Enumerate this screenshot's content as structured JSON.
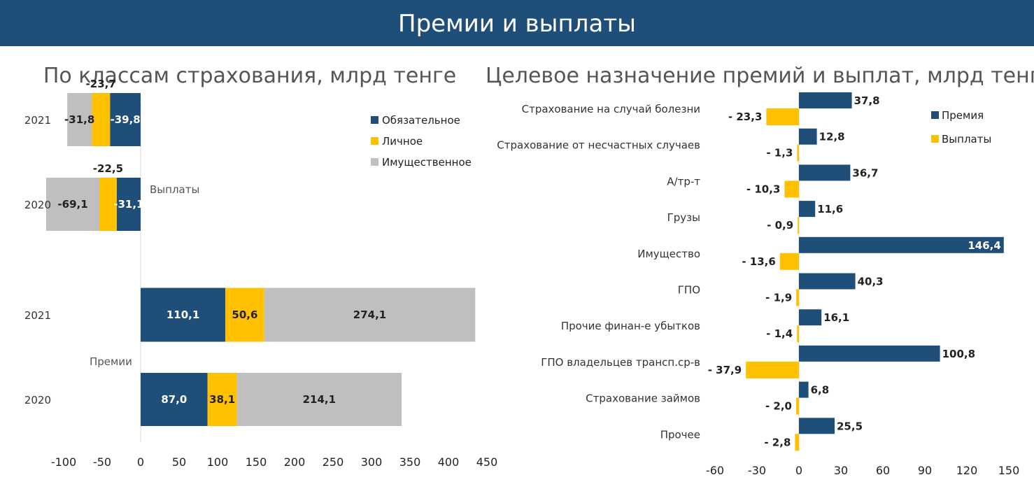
{
  "header": {
    "title": "Премии и выплаты"
  },
  "colors": {
    "header_bg": "#1f4e79",
    "navy": "#1f4e79",
    "yellow": "#ffc000",
    "gray": "#bfbfbf"
  },
  "chart_data": [
    {
      "type": "bar",
      "orientation": "horizontal",
      "stacked": true,
      "title": "По классам страхования, млрд тенге",
      "categories": [
        "2021",
        "2020",
        "2021",
        "2020"
      ],
      "group_labels": [
        "Выплаты",
        "Премии"
      ],
      "series": [
        {
          "name": "Обязательное",
          "values": [
            -39.8,
            -31.1,
            110.1,
            87.0
          ],
          "labels": [
            "-39,8",
            "-31,1",
            "110,1",
            "87,0"
          ]
        },
        {
          "name": "Личное",
          "values": [
            -23.7,
            -22.5,
            50.6,
            38.1
          ],
          "labels": [
            "-23,7",
            "-22,5",
            "50,6",
            "38,1"
          ]
        },
        {
          "name": "Имущественное",
          "values": [
            -31.8,
            -69.1,
            274.1,
            214.1
          ],
          "labels": [
            "-31,8",
            "-69,1",
            "274,1",
            "214,1"
          ]
        }
      ],
      "xlim": [
        -100,
        450
      ],
      "xticks": [
        "-100",
        "-50",
        "0",
        "50",
        "100",
        "150",
        "200",
        "250",
        "300",
        "350",
        "400",
        "450"
      ],
      "legend": "top-right",
      "grid": false
    },
    {
      "type": "bar",
      "orientation": "horizontal",
      "title": "Целевое назначение премий и выплат, млрд тенге",
      "categories": [
        "Страхование на случай болезни",
        "Страхование от несчастных случаев",
        "А/тр-т",
        "Грузы",
        "Имущество",
        "ГПО",
        "Прочие финан-е убытков",
        "ГПО владельцев трансп.ср-в",
        "Страхование займов",
        "Прочее"
      ],
      "series": [
        {
          "name": "Премия",
          "values": [
            37.8,
            12.8,
            36.7,
            11.6,
            146.4,
            40.3,
            16.1,
            100.8,
            6.8,
            25.5
          ],
          "labels": [
            "37,8",
            "12,8",
            "36,7",
            "11,6",
            "146,4",
            "40,3",
            "16,1",
            "100,8",
            "6,8",
            "25,5"
          ]
        },
        {
          "name": "Выплаты",
          "values": [
            -23.3,
            -1.3,
            -10.3,
            -0.9,
            -13.6,
            -1.9,
            -1.4,
            -37.9,
            -2.0,
            -2.8
          ],
          "labels": [
            "- 23,3",
            "- 1,3",
            "- 10,3",
            "- 0,9",
            "- 13,6",
            "- 1,9",
            "- 1,4",
            "- 37,9",
            "- 2,0",
            "- 2,8"
          ]
        }
      ],
      "xlim": [
        -60,
        150
      ],
      "xticks": [
        "-60",
        "-30",
        "0",
        "30",
        "60",
        "90",
        "120",
        "150"
      ],
      "legend": "top-right",
      "grid": false
    }
  ]
}
